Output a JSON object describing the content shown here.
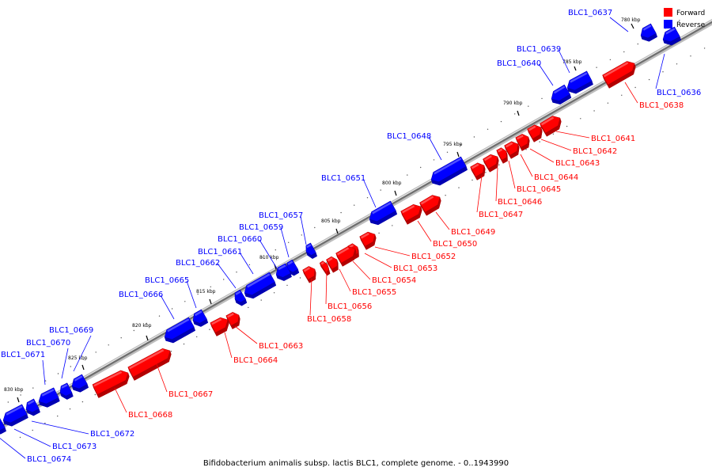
{
  "caption": "Bifidobacterium animalis subsp. lactis BLC1, complete genome. - 0..1943990",
  "legend": [
    {
      "label": "Forward",
      "color": "#ff0000"
    },
    {
      "label": "Reverse",
      "color": "#0000ff"
    }
  ],
  "colors": {
    "forward": "#ff0000",
    "reverse": "#0000ff",
    "backbone": "#999999"
  },
  "ticks": [
    "780 kbp",
    "785 kbp",
    "790 kbp",
    "795 kbp",
    "800 kbp",
    "805 kbp",
    "810 kbp",
    "815 kbp",
    "820 kbp",
    "825 kbp",
    "830 kbp"
  ],
  "genes": [
    {
      "name": "BLC1_0636",
      "strand": "reverse"
    },
    {
      "name": "BLC1_0637",
      "strand": "reverse"
    },
    {
      "name": "BLC1_0638",
      "strand": "forward"
    },
    {
      "name": "BLC1_0639",
      "strand": "reverse"
    },
    {
      "name": "BLC1_0640",
      "strand": "reverse"
    },
    {
      "name": "BLC1_0641",
      "strand": "forward"
    },
    {
      "name": "BLC1_0642",
      "strand": "forward"
    },
    {
      "name": "BLC1_0643",
      "strand": "forward"
    },
    {
      "name": "BLC1_0644",
      "strand": "forward"
    },
    {
      "name": "BLC1_0645",
      "strand": "forward"
    },
    {
      "name": "BLC1_0646",
      "strand": "forward"
    },
    {
      "name": "BLC1_0647",
      "strand": "forward"
    },
    {
      "name": "BLC1_0648",
      "strand": "reverse"
    },
    {
      "name": "BLC1_0649",
      "strand": "forward"
    },
    {
      "name": "BLC1_0650",
      "strand": "forward"
    },
    {
      "name": "BLC1_0651",
      "strand": "reverse"
    },
    {
      "name": "BLC1_0652",
      "strand": "forward"
    },
    {
      "name": "BLC1_0653",
      "strand": "forward"
    },
    {
      "name": "BLC1_0654",
      "strand": "forward"
    },
    {
      "name": "BLC1_0655",
      "strand": "forward"
    },
    {
      "name": "BLC1_0656",
      "strand": "forward"
    },
    {
      "name": "BLC1_0657",
      "strand": "reverse"
    },
    {
      "name": "BLC1_0658",
      "strand": "forward"
    },
    {
      "name": "BLC1_0659",
      "strand": "reverse"
    },
    {
      "name": "BLC1_0660",
      "strand": "reverse"
    },
    {
      "name": "BLC1_0661",
      "strand": "reverse"
    },
    {
      "name": "BLC1_0662",
      "strand": "reverse"
    },
    {
      "name": "BLC1_0663",
      "strand": "forward"
    },
    {
      "name": "BLC1_0664",
      "strand": "forward"
    },
    {
      "name": "BLC1_0665",
      "strand": "reverse"
    },
    {
      "name": "BLC1_0666",
      "strand": "reverse"
    },
    {
      "name": "BLC1_0667",
      "strand": "forward"
    },
    {
      "name": "BLC1_0668",
      "strand": "forward"
    },
    {
      "name": "BLC1_0669",
      "strand": "reverse"
    },
    {
      "name": "BLC1_0670",
      "strand": "reverse"
    },
    {
      "name": "BLC1_0671",
      "strand": "reverse"
    },
    {
      "name": "BLC1_0672",
      "strand": "reverse"
    },
    {
      "name": "BLC1_0673",
      "strand": "reverse"
    },
    {
      "name": "BLC1_0674",
      "strand": "reverse"
    }
  ]
}
